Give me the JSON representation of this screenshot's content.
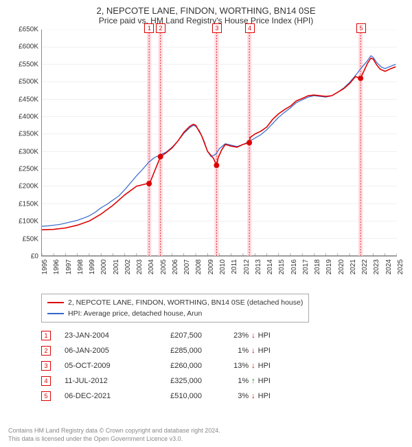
{
  "title": "2, NEPCOTE LANE, FINDON, WORTHING, BN14 0SE",
  "subtitle": "Price paid vs. HM Land Registry's House Price Index (HPI)",
  "chart": {
    "type": "line",
    "background_color": "#ffffff",
    "grid_color": "#e0e0e0",
    "axis_color": "#666666",
    "ylim": [
      0,
      650000
    ],
    "ytick_step": 50000,
    "yticks": [
      "£0",
      "£50K",
      "£100K",
      "£150K",
      "£200K",
      "£250K",
      "£300K",
      "£350K",
      "£400K",
      "£450K",
      "£500K",
      "£550K",
      "£600K",
      "£650K"
    ],
    "x_start_year": 1995,
    "x_end_year": 2025,
    "xticks": [
      "1995",
      "1996",
      "1997",
      "1998",
      "1999",
      "2000",
      "2001",
      "2002",
      "2003",
      "2004",
      "2005",
      "2006",
      "2007",
      "2008",
      "2009",
      "2010",
      "2011",
      "2012",
      "2013",
      "2014",
      "2015",
      "2016",
      "2017",
      "2018",
      "2019",
      "2020",
      "2021",
      "2022",
      "2023",
      "2024",
      "2025"
    ],
    "series": {
      "price_paid": {
        "label": "2, NEPCOTE LANE, FINDON, WORTHING, BN14 0SE (detached house)",
        "color": "#dd0000",
        "width": 1.6,
        "points": [
          [
            1995.0,
            75000
          ],
          [
            1996.0,
            76000
          ],
          [
            1997.0,
            80000
          ],
          [
            1998.0,
            88000
          ],
          [
            1999.0,
            100000
          ],
          [
            2000.0,
            120000
          ],
          [
            2001.0,
            145000
          ],
          [
            2002.0,
            175000
          ],
          [
            2003.0,
            200000
          ],
          [
            2003.9,
            207500
          ],
          [
            2004.08,
            207500
          ],
          [
            2004.1,
            207500
          ],
          [
            2005.02,
            285000
          ],
          [
            2005.5,
            296000
          ],
          [
            2006.0,
            310000
          ],
          [
            2006.5,
            330000
          ],
          [
            2007.0,
            355000
          ],
          [
            2007.5,
            372000
          ],
          [
            2007.8,
            378000
          ],
          [
            2008.0,
            375000
          ],
          [
            2008.5,
            345000
          ],
          [
            2009.0,
            300000
          ],
          [
            2009.5,
            280000
          ],
          [
            2009.76,
            260000
          ],
          [
            2009.9,
            282000
          ],
          [
            2010.2,
            305000
          ],
          [
            2010.5,
            320000
          ],
          [
            2011.0,
            315000
          ],
          [
            2011.5,
            312000
          ],
          [
            2012.0,
            320000
          ],
          [
            2012.53,
            325000
          ],
          [
            2012.6,
            340000
          ],
          [
            2013.0,
            350000
          ],
          [
            2013.5,
            358000
          ],
          [
            2014.0,
            370000
          ],
          [
            2014.5,
            392000
          ],
          [
            2015.0,
            408000
          ],
          [
            2015.5,
            420000
          ],
          [
            2016.0,
            430000
          ],
          [
            2016.5,
            445000
          ],
          [
            2017.0,
            452000
          ],
          [
            2017.5,
            460000
          ],
          [
            2018.0,
            462000
          ],
          [
            2018.5,
            460000
          ],
          [
            2019.0,
            458000
          ],
          [
            2019.5,
            460000
          ],
          [
            2020.0,
            470000
          ],
          [
            2020.5,
            480000
          ],
          [
            2021.0,
            495000
          ],
          [
            2021.5,
            515000
          ],
          [
            2021.93,
            510000
          ],
          [
            2022.2,
            530000
          ],
          [
            2022.5,
            552000
          ],
          [
            2022.8,
            568000
          ],
          [
            2023.0,
            565000
          ],
          [
            2023.3,
            548000
          ],
          [
            2023.6,
            536000
          ],
          [
            2024.0,
            530000
          ],
          [
            2024.5,
            538000
          ],
          [
            2024.9,
            543000
          ]
        ]
      },
      "hpi": {
        "label": "HPI: Average price, detached house, Arun",
        "color": "#3366cc",
        "width": 1.2,
        "points": [
          [
            1995.0,
            85000
          ],
          [
            1995.5,
            86000
          ],
          [
            1996.0,
            88000
          ],
          [
            1996.5,
            90000
          ],
          [
            1997.0,
            94000
          ],
          [
            1997.5,
            98000
          ],
          [
            1998.0,
            102000
          ],
          [
            1998.5,
            108000
          ],
          [
            1999.0,
            115000
          ],
          [
            1999.5,
            125000
          ],
          [
            2000.0,
            138000
          ],
          [
            2000.5,
            148000
          ],
          [
            2001.0,
            160000
          ],
          [
            2001.5,
            172000
          ],
          [
            2002.0,
            190000
          ],
          [
            2002.5,
            210000
          ],
          [
            2003.0,
            230000
          ],
          [
            2003.5,
            248000
          ],
          [
            2004.0,
            268000
          ],
          [
            2004.5,
            282000
          ],
          [
            2005.0,
            290000
          ],
          [
            2005.5,
            298000
          ],
          [
            2006.0,
            312000
          ],
          [
            2006.5,
            330000
          ],
          [
            2007.0,
            352000
          ],
          [
            2007.5,
            368000
          ],
          [
            2007.8,
            375000
          ],
          [
            2008.0,
            372000
          ],
          [
            2008.3,
            360000
          ],
          [
            2008.7,
            330000
          ],
          [
            2009.0,
            300000
          ],
          [
            2009.3,
            285000
          ],
          [
            2009.7,
            292000
          ],
          [
            2010.0,
            308000
          ],
          [
            2010.5,
            322000
          ],
          [
            2011.0,
            318000
          ],
          [
            2011.5,
            314000
          ],
          [
            2012.0,
            320000
          ],
          [
            2012.5,
            328000
          ],
          [
            2013.0,
            338000
          ],
          [
            2013.5,
            348000
          ],
          [
            2014.0,
            362000
          ],
          [
            2014.5,
            380000
          ],
          [
            2015.0,
            398000
          ],
          [
            2015.5,
            412000
          ],
          [
            2016.0,
            425000
          ],
          [
            2016.5,
            440000
          ],
          [
            2017.0,
            448000
          ],
          [
            2017.5,
            456000
          ],
          [
            2018.0,
            460000
          ],
          [
            2018.5,
            458000
          ],
          [
            2019.0,
            456000
          ],
          [
            2019.5,
            460000
          ],
          [
            2020.0,
            470000
          ],
          [
            2020.5,
            482000
          ],
          [
            2021.0,
            498000
          ],
          [
            2021.5,
            518000
          ],
          [
            2022.0,
            540000
          ],
          [
            2022.5,
            560000
          ],
          [
            2022.8,
            575000
          ],
          [
            2023.0,
            570000
          ],
          [
            2023.3,
            555000
          ],
          [
            2023.7,
            542000
          ],
          [
            2024.0,
            538000
          ],
          [
            2024.5,
            545000
          ],
          [
            2024.9,
            550000
          ]
        ]
      }
    },
    "transactions": [
      {
        "idx": "1",
        "year": 2004.06,
        "date": "23-JAN-2004",
        "price": "£207,500",
        "diff_pct": "23%",
        "direction": "down"
      },
      {
        "idx": "2",
        "year": 2005.02,
        "date": "06-JAN-2005",
        "price": "£285,000",
        "diff_pct": "1%",
        "direction": "down"
      },
      {
        "idx": "3",
        "year": 2009.76,
        "date": "05-OCT-2009",
        "price": "£260,000",
        "diff_pct": "13%",
        "direction": "down"
      },
      {
        "idx": "4",
        "year": 2012.53,
        "date": "11-JUL-2012",
        "price": "£325,000",
        "diff_pct": "1%",
        "direction": "up"
      },
      {
        "idx": "5",
        "year": 2021.93,
        "date": "06-DEC-2021",
        "price": "£510,000",
        "diff_pct": "3%",
        "direction": "down"
      }
    ],
    "transaction_values": [
      207500,
      285000,
      260000,
      325000,
      510000
    ],
    "highlight_color": "#ffd9e0",
    "marker_border_color": "#dd0000",
    "marker_fill_color": "#dd0000",
    "tick_fontsize": 10,
    "title_fontsize": 13,
    "hpi_suffix": "HPI"
  },
  "footer": {
    "line1": "Contains HM Land Registry data © Crown copyright and database right 2024.",
    "line2": "This data is licensed under the Open Government Licence v3.0."
  }
}
